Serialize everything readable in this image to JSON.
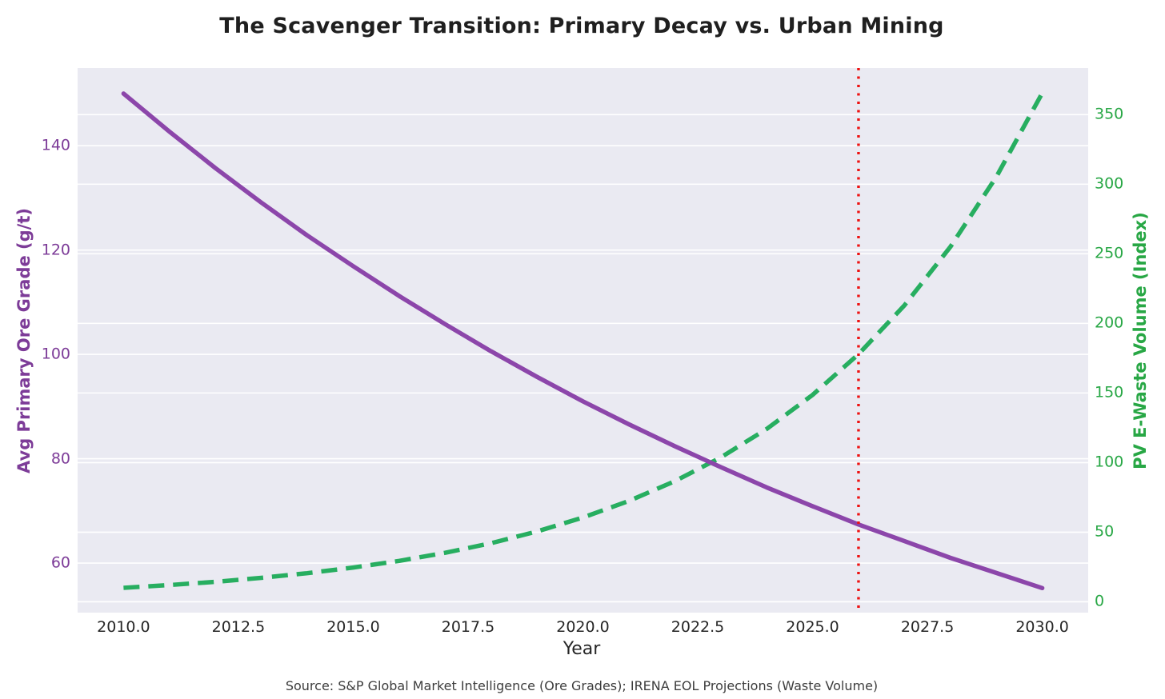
{
  "chart_data": {
    "type": "line",
    "title": "The Scavenger Transition: Primary Decay vs. Urban Mining",
    "xlabel": "Year",
    "source_note": "Source: S&P Global Market Intelligence (Ore Grades); IRENA EOL Projections (Waste Volume)",
    "grid": true,
    "legend": "none",
    "plot_bg_color": "#eaeaf2",
    "grid_color": "#ffffff",
    "title_color": "#1f1f1f",
    "x": [
      2010,
      2011,
      2012,
      2013,
      2014,
      2015,
      2016,
      2017,
      2018,
      2019,
      2020,
      2021,
      2022,
      2023,
      2024,
      2025,
      2026,
      2027,
      2028,
      2029,
      2030
    ],
    "xlim": [
      2009,
      2031
    ],
    "x_ticks": {
      "values": [
        2010.0,
        2012.5,
        2015.0,
        2017.5,
        2020.0,
        2022.5,
        2025.0,
        2027.5,
        2030.0
      ],
      "labels": [
        "2010.0",
        "2012.5",
        "2015.0",
        "2017.5",
        "2020.0",
        "2022.5",
        "2025.0",
        "2027.5",
        "2030.0"
      ]
    },
    "axes": {
      "left": {
        "label": "Avg Primary Ore Grade (g/t)",
        "color": "#7d3c98",
        "ylim": [
          50.5,
          154.9
        ],
        "ticks": {
          "values": [
            60,
            80,
            100,
            120,
            140
          ],
          "labels": [
            "60",
            "80",
            "100",
            "120",
            "140"
          ]
        }
      },
      "right": {
        "label": "PV E-Waste Volume (Index)",
        "color": "#28a745",
        "ylim": [
          -7.8,
          383.5
        ],
        "ticks": {
          "values": [
            0,
            50,
            100,
            150,
            200,
            250,
            300,
            350
          ],
          "labels": [
            "0",
            "50",
            "100",
            "150",
            "200",
            "250",
            "300",
            "350"
          ]
        }
      }
    },
    "series": [
      {
        "name": "PV E-Waste Volume (Index)",
        "axis": "right",
        "color": "#27ae60",
        "line_style": "dashed",
        "line_width": 5.5,
        "values": [
          10.0,
          12.0,
          14.3,
          17.2,
          20.5,
          24.6,
          29.4,
          35.2,
          42.1,
          50.5,
          60.5,
          72.4,
          86.6,
          103.7,
          124.1,
          148.6,
          177.9,
          213.0,
          255.0,
          305.3,
          365.5
        ]
      },
      {
        "name": "Avg Primary Ore Grade (g/t)",
        "axis": "left",
        "color": "#8c46aa",
        "line_style": "solid",
        "line_width": 5.5,
        "values": [
          150.0,
          142.7,
          135.7,
          129.1,
          122.8,
          116.9,
          111.2,
          105.8,
          100.6,
          95.7,
          91.0,
          86.6,
          82.4,
          78.4,
          74.5,
          70.9,
          67.4,
          64.2,
          61.0,
          58.1,
          55.2
        ]
      }
    ],
    "vline": {
      "x": 2026,
      "color": "#ee1111",
      "line_style": "dotted",
      "line_width": 3.4
    }
  }
}
